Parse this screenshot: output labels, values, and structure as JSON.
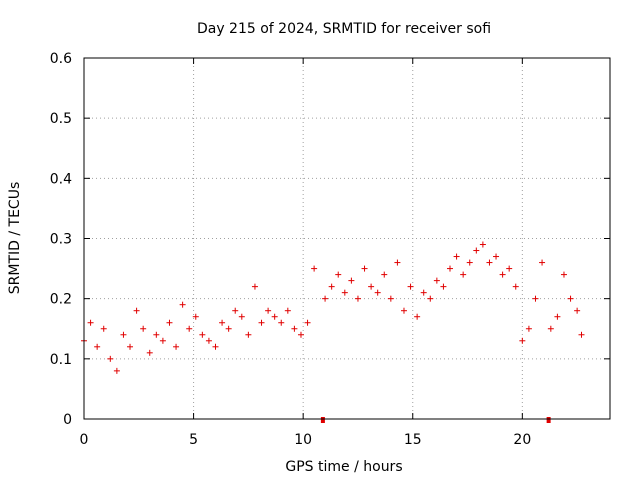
{
  "chart_data": {
    "type": "scatter",
    "title": "Day 215 of 2024, SRMTID for receiver sofi",
    "xlabel": "GPS time / hours",
    "ylabel": "SRMTID / TECUs",
    "xlim": [
      0,
      24
    ],
    "ylim": [
      0,
      0.6
    ],
    "xticks": [
      0,
      5,
      10,
      15,
      20
    ],
    "xtick_labels": [
      "0",
      "5",
      "10",
      "15",
      "20"
    ],
    "yticks": [
      0,
      0.1,
      0.2,
      0.3,
      0.4,
      0.5,
      0.6
    ],
    "ytick_labels": [
      "0",
      "0.1",
      "0.2",
      "0.3",
      "0.4",
      "0.5",
      "0.6"
    ],
    "grid": true,
    "marker": "+",
    "color": "#e00000",
    "data_gaps_at_hours": [
      10.9,
      21.2
    ],
    "series": [
      {
        "name": "SRMTID",
        "x": [
          0.0,
          0.3,
          0.6,
          0.9,
          1.2,
          1.5,
          1.8,
          2.1,
          2.4,
          2.7,
          3.0,
          3.3,
          3.6,
          3.9,
          4.2,
          4.5,
          4.8,
          5.1,
          5.4,
          5.7,
          6.0,
          6.3,
          6.6,
          6.9,
          7.2,
          7.5,
          7.8,
          8.1,
          8.4,
          8.7,
          9.0,
          9.3,
          9.6,
          9.9,
          10.2,
          10.5,
          11.0,
          11.3,
          11.6,
          11.9,
          12.2,
          12.5,
          12.8,
          13.1,
          13.4,
          13.7,
          14.0,
          14.3,
          14.6,
          14.9,
          15.2,
          15.5,
          15.8,
          16.1,
          16.4,
          16.7,
          17.0,
          17.3,
          17.6,
          17.9,
          18.2,
          18.5,
          18.8,
          19.1,
          19.4,
          19.7,
          20.0,
          20.3,
          20.6,
          20.9,
          21.3,
          21.6,
          21.9,
          22.2,
          22.5,
          22.7
        ],
        "y": [
          0.13,
          0.16,
          0.12,
          0.15,
          0.1,
          0.08,
          0.14,
          0.12,
          0.18,
          0.15,
          0.11,
          0.14,
          0.13,
          0.16,
          0.12,
          0.19,
          0.15,
          0.17,
          0.14,
          0.13,
          0.12,
          0.16,
          0.15,
          0.18,
          0.17,
          0.14,
          0.22,
          0.16,
          0.18,
          0.17,
          0.16,
          0.18,
          0.15,
          0.14,
          0.16,
          0.25,
          0.2,
          0.22,
          0.24,
          0.21,
          0.23,
          0.2,
          0.25,
          0.22,
          0.21,
          0.24,
          0.2,
          0.26,
          0.18,
          0.22,
          0.17,
          0.21,
          0.2,
          0.23,
          0.22,
          0.25,
          0.27,
          0.24,
          0.26,
          0.28,
          0.29,
          0.26,
          0.27,
          0.24,
          0.25,
          0.22,
          0.13,
          0.15,
          0.2,
          0.26,
          0.15,
          0.17,
          0.24,
          0.2,
          0.18,
          0.14
        ]
      }
    ]
  }
}
